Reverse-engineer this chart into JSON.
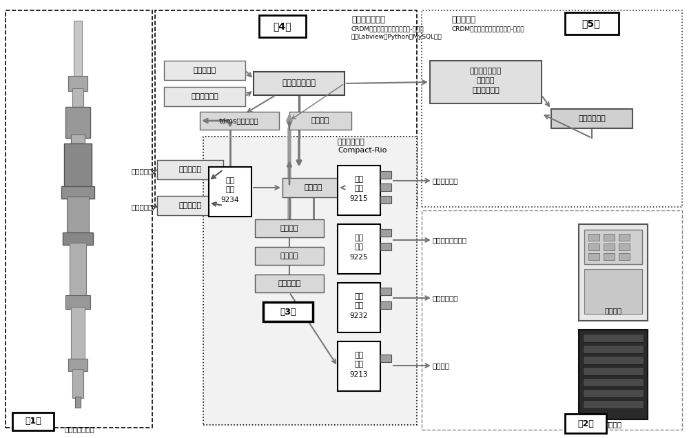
{
  "bg_color": "#ffffff",
  "fig_width": 10.0,
  "fig_height": 6.35,
  "components": {
    "crdm_image_label": "控制棒驱动机构",
    "label1": "（1）",
    "label2": "（2）",
    "label3": "（3）",
    "label4": "（4）",
    "label5": "（5）",
    "box4_title": "本地上位计算机",
    "box4_sub1": "CRDM状态监测和健康管理软件-边缘端",
    "box4_sub2": "基于Labview，Python，MySQL开发",
    "box5_title": "用户服务器",
    "box5_sub": "CRDM状态监测和健康管理软件-客户端",
    "embedded_label1": "嵌入式控制器",
    "embedded_label2": "Compact-Rio",
    "vibration_label": "振动加速度",
    "pressure_label": "承压壳温度",
    "charge_converter": "电荷转换器",
    "interface_converter": "接口转换器",
    "collect_9234_l1": "采集",
    "collect_9234_l2": "模块",
    "collect_9234_l3": "9234",
    "collect_rules": "采集规则",
    "data_output": "数据输出",
    "data_buffer": "数据缓存",
    "multi_channel": "多通道同步",
    "collect_9215_l1": "采集",
    "collect_9215_l2": "模块",
    "collect_9215_l3": "9215",
    "collect_9225_l1": "采集",
    "collect_9225_l2": "模块",
    "collect_9225_l3": "9225",
    "collect_9232_l1": "采集",
    "collect_9232_l2": "模块",
    "collect_9232_l3": "9232",
    "collect_9213_l1": "采集",
    "collect_9213_l2": "模块",
    "collect_9213_l3": "9213",
    "extract_features": "提取特征値",
    "data_slice": "数据切块分条",
    "local_db": "本地数据库系统",
    "tdms_files": "tdms格式文件集",
    "control_ui": "控制界面",
    "feature_trend_l1": "特征値趋势统计",
    "feature_trend_l2": "故障诊断",
    "feature_trend_l3": "剩余寿命预估",
    "server_db": "服务器数据库",
    "coil_current": "工作线圈电流",
    "coil_voltage": "工作线圈驱动电压",
    "step_signal": "步跃逻辑信号",
    "drop_voltage": "落棒电压",
    "rod_control_cabinet": "棒控机柜",
    "rod_position_cabinet": "棒位机柜"
  }
}
